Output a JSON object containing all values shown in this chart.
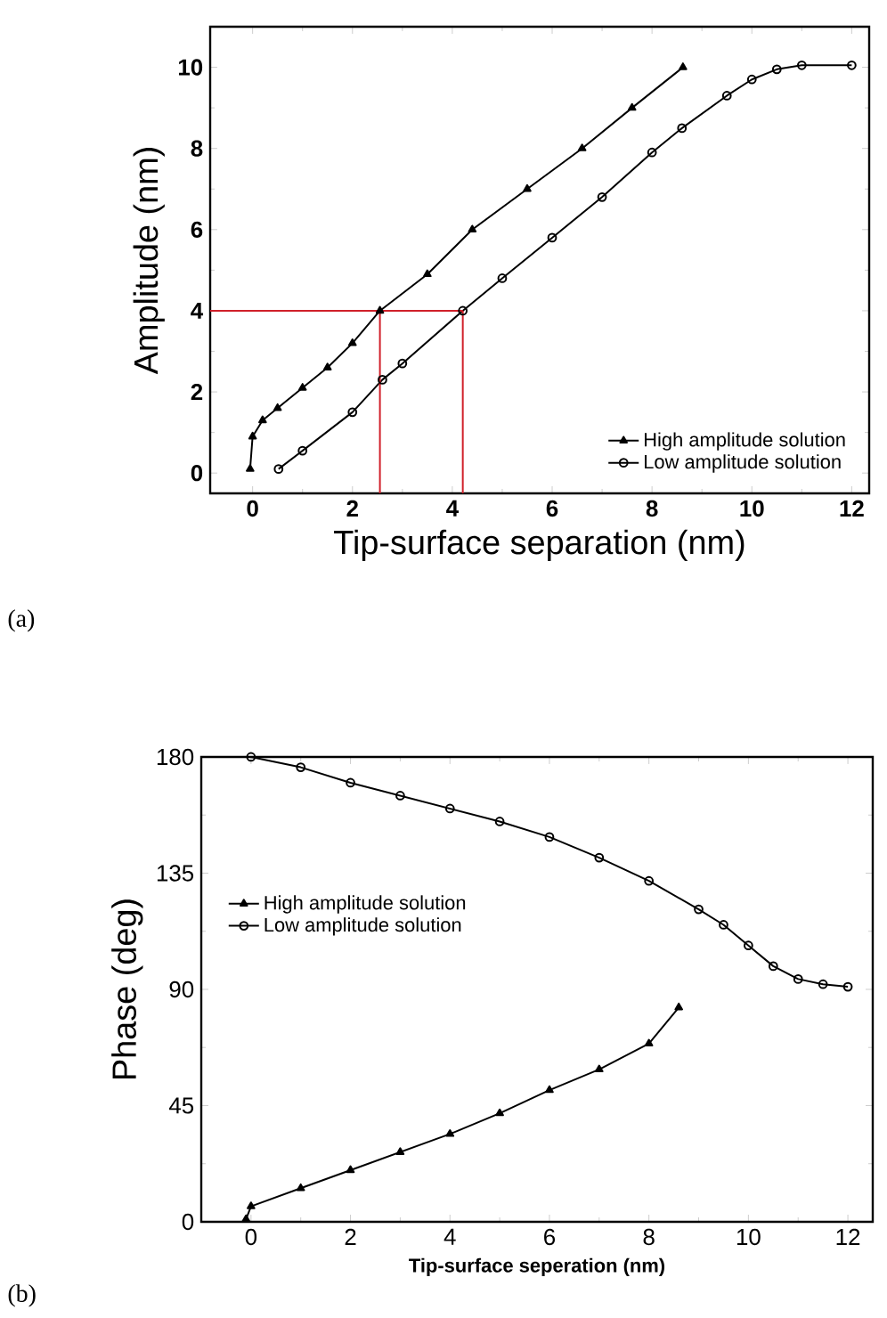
{
  "chart_data": [
    {
      "type": "line",
      "xlabel": "Tip-surface separation (nm)",
      "ylabel": "Amplitude (nm)",
      "xlim": [
        -0.85,
        12.35
      ],
      "ylim": [
        -0.5,
        11
      ],
      "xticks": [
        0,
        2,
        4,
        6,
        8,
        10,
        12
      ],
      "yticks": [
        0,
        2,
        4,
        6,
        8,
        10
      ],
      "legend": "bottom right",
      "annotations": [
        "(a)"
      ],
      "series": [
        {
          "name": "High amplitude solution",
          "color": "#000000",
          "marker": "triangle",
          "line_style": "solid",
          "x": [
            -0.05,
            0,
            0.2,
            0.5,
            1,
            1.5,
            2,
            2.55,
            3.5,
            4.4,
            5.5,
            6.6,
            7.6,
            8.62
          ],
          "values": [
            0.1,
            0.9,
            1.3,
            1.6,
            2.1,
            2.6,
            3.2,
            4,
            4.9,
            6,
            7,
            8,
            9,
            10
          ]
        },
        {
          "name": "Low amplitude solution",
          "color": "#000000",
          "marker": "circle",
          "line_style": "solid",
          "x": [
            0.52,
            1,
            2,
            2.6,
            3,
            4.21,
            5,
            6,
            7,
            8,
            8.6,
            9.5,
            10,
            10.5,
            11,
            12
          ],
          "values": [
            0.1,
            0.55,
            1.5,
            2.3,
            2.7,
            4,
            4.8,
            5.8,
            6.8,
            7.9,
            8.5,
            9.3,
            9.7,
            9.95,
            10.05,
            10.05
          ]
        },
        {
          "color": "#d0202a",
          "marker": "none",
          "line_style": "solid",
          "x": [
            -0.85,
            4.21
          ],
          "values": [
            4,
            4
          ]
        },
        {
          "color": "#d0202a",
          "marker": "none",
          "line_style": "solid",
          "x": [
            2.55,
            2.55
          ],
          "values": [
            4,
            -0.5
          ]
        },
        {
          "color": "#d0202a",
          "marker": "none",
          "line_style": "solid",
          "x": [
            4.21,
            4.21
          ],
          "values": [
            4,
            -0.5
          ]
        }
      ]
    },
    {
      "type": "line",
      "xlabel": "Tip-surface seperation (nm)",
      "ylabel": "Phase (deg)",
      "xlim": [
        -1,
        12.5
      ],
      "ylim": [
        0,
        180
      ],
      "xticks": [
        0,
        2,
        4,
        6,
        8,
        10,
        12
      ],
      "yticks": [
        0,
        45,
        90,
        135,
        180
      ],
      "legend": "left",
      "annotations": [
        "(b)"
      ],
      "series": [
        {
          "name": "High amplitude solution",
          "color": "#000000",
          "marker": "triangle",
          "line_style": "solid",
          "x": [
            -0.1,
            0,
            1,
            2,
            3,
            4,
            5,
            6,
            7,
            8,
            8.6
          ],
          "values": [
            1,
            6,
            13,
            20,
            27,
            34,
            42,
            51,
            59,
            69,
            83
          ]
        },
        {
          "name": "Low amplitude solution",
          "color": "#000000",
          "marker": "circle",
          "line_style": "solid",
          "x": [
            0,
            1,
            2,
            3,
            4,
            5,
            6,
            7,
            8,
            9,
            9.5,
            10,
            10.5,
            11,
            11.5,
            12
          ],
          "values": [
            180,
            176,
            170,
            165,
            160,
            155,
            149,
            141,
            132,
            121,
            115,
            107,
            99,
            94,
            92,
            91
          ]
        }
      ]
    }
  ]
}
